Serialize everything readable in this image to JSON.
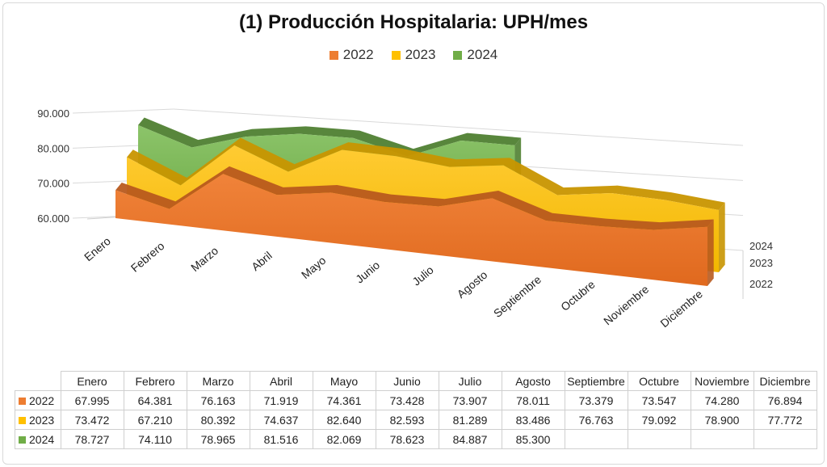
{
  "chart_data": {
    "type": "area",
    "title": "(1) Producción Hospitalaria: UPH/mes",
    "categories": [
      "Enero",
      "Febrero",
      "Marzo",
      "Abril",
      "Mayo",
      "Junio",
      "Julio",
      "Agosto",
      "Septiembre",
      "Octubre",
      "Noviembre",
      "Diciembre"
    ],
    "series": [
      {
        "name": "2022",
        "color": "#ED7D31",
        "values": [
          67995,
          64381,
          76163,
          71919,
          74361,
          73428,
          73907,
          78011,
          73379,
          73547,
          74280,
          76894
        ],
        "labels": [
          "67.995",
          "64.381",
          "76.163",
          "71.919",
          "74.361",
          "73.428",
          "73.907",
          "78.011",
          "73.379",
          "73.547",
          "74.280",
          "76.894"
        ]
      },
      {
        "name": "2023",
        "color": "#FFC000",
        "values": [
          73472,
          67210,
          80392,
          74637,
          82640,
          82593,
          81289,
          83486,
          76763,
          79092,
          78900,
          77772
        ],
        "labels": [
          "73.472",
          "67.210",
          "80.392",
          "74.637",
          "82.640",
          "82.593",
          "81.289",
          "83.486",
          "76.763",
          "79.092",
          "78.900",
          "77.772"
        ]
      },
      {
        "name": "2024",
        "color": "#70AD47",
        "values": [
          78727,
          74110,
          78965,
          81516,
          82069,
          78623,
          84887,
          85300,
          null,
          null,
          null,
          null
        ],
        "labels": [
          "78.727",
          "74.110",
          "78.965",
          "81.516",
          "82.069",
          "78.623",
          "84.887",
          "85.300",
          "",
          "",
          "",
          ""
        ]
      }
    ],
    "y_ticks": [
      "60.000",
      "70.000",
      "80.000",
      "90.000"
    ],
    "y_tick_values": [
      60000,
      70000,
      80000,
      90000
    ],
    "ylim": [
      60000,
      90000
    ],
    "depth_labels": [
      "2022",
      "2023",
      "2024"
    ],
    "legend": "top-center",
    "grid": true,
    "has_data_table": true
  }
}
